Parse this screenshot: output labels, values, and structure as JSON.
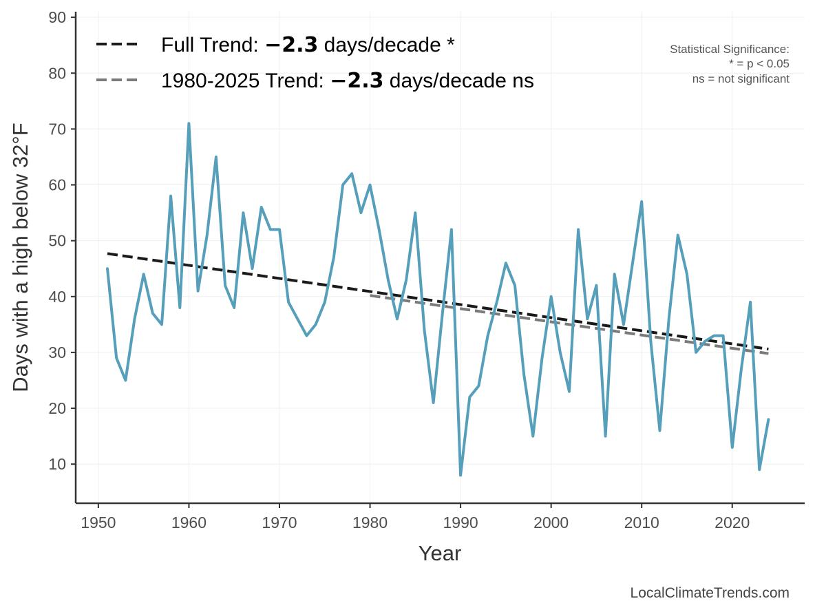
{
  "chart_data": {
    "type": "line",
    "xlabel": "Year",
    "ylabel": "Days with a high below 32°F",
    "xlim": [
      1947.5,
      2028.0
    ],
    "ylim": [
      3,
      91
    ],
    "xticks": [
      1950,
      1960,
      1970,
      1980,
      1990,
      2000,
      2010,
      2020
    ],
    "yticks": [
      10,
      20,
      30,
      40,
      50,
      60,
      70,
      80,
      90
    ],
    "grid": true,
    "series": [
      {
        "color": "#569fbb",
        "x": [
          1951,
          1952,
          1953,
          1954,
          1955,
          1956,
          1957,
          1958,
          1959,
          1960,
          1961,
          1962,
          1963,
          1964,
          1965,
          1966,
          1967,
          1968,
          1969,
          1970,
          1971,
          1972,
          1973,
          1974,
          1975,
          1976,
          1977,
          1978,
          1979,
          1980,
          1981,
          1982,
          1983,
          1984,
          1985,
          1986,
          1987,
          1988,
          1989,
          1990,
          1991,
          1992,
          1993,
          1994,
          1995,
          1996,
          1997,
          1998,
          1999,
          2000,
          2001,
          2002,
          2003,
          2004,
          2005,
          2006,
          2007,
          2008,
          2009,
          2010,
          2011,
          2012,
          2013,
          2014,
          2015,
          2016,
          2017,
          2018,
          2019,
          2020,
          2021,
          2022,
          2023,
          2024
        ],
        "values": [
          45,
          29,
          25,
          36,
          44,
          37,
          35,
          58,
          38,
          71,
          41,
          51,
          65,
          42,
          38,
          55,
          45,
          56,
          52,
          52,
          39,
          36,
          33,
          35,
          39,
          47,
          60,
          62,
          55,
          60,
          52,
          43,
          36,
          43,
          55,
          34,
          21,
          37,
          52,
          8,
          22,
          24,
          33,
          39,
          46,
          42,
          26,
          15,
          29,
          40,
          30,
          23,
          52,
          36,
          42,
          15,
          44,
          35,
          46,
          57,
          32,
          16,
          36,
          51,
          44,
          30,
          32,
          33,
          33,
          13,
          27,
          39,
          9,
          18
        ]
      }
    ],
    "trends": [
      {
        "name": "Full Trend",
        "value": "−2.3",
        "suffix": "days/decade *",
        "style": "dashed",
        "color": "#1a1a1a",
        "x": [
          1951,
          2024
        ],
        "y": [
          47.7,
          30.6
        ]
      },
      {
        "name": "1980-2025 Trend",
        "value": "−2.3",
        "suffix": "days/decade ns",
        "style": "dashed",
        "color": "#7a7a7a",
        "x": [
          1980,
          2024
        ],
        "y": [
          40.2,
          29.8
        ]
      }
    ],
    "legend_position": "top-left"
  },
  "legend": {
    "items": [
      {
        "prefix": "Full Trend: ",
        "value": "−2.3",
        "suffix": " days/decade *"
      },
      {
        "prefix": "1980-2025 Trend: ",
        "value": "−2.3",
        "suffix": " days/decade ns"
      }
    ]
  },
  "significance_note": {
    "title": "Statistical Significance:",
    "line1": "* = p < 0.05",
    "line2": "ns = not significant"
  },
  "credit": "LocalClimateTrends.com",
  "colors": {
    "series": "#569fbb",
    "full_trend": "#1a1a1a",
    "recent_trend": "#7a7a7a",
    "axis": "#333333",
    "grid": "#efefef"
  }
}
